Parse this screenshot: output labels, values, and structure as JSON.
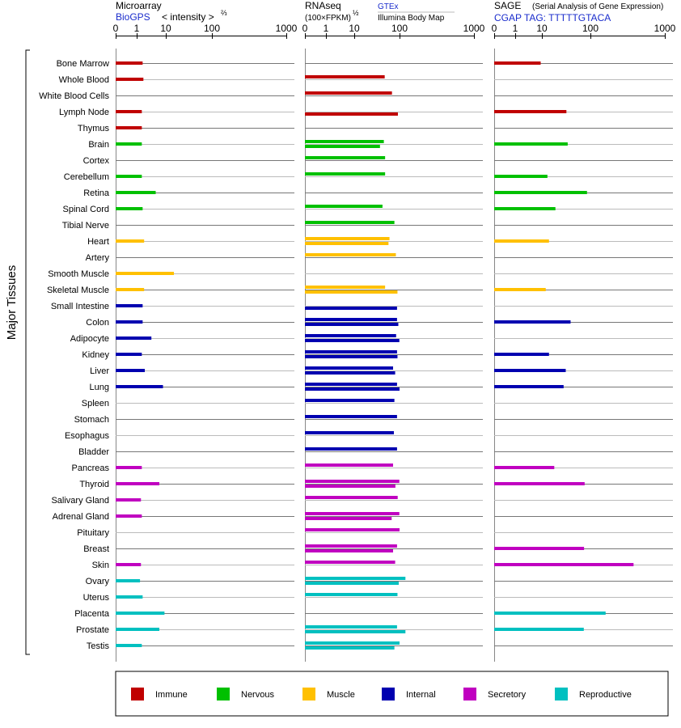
{
  "headers": {
    "microarray": {
      "title": "Microarray",
      "source": "BioGPS",
      "measure": "< intensity >",
      "measure_exp": "⅔",
      "ticks": [
        "0",
        "1",
        "10",
        "100",
        "1000"
      ]
    },
    "rnaseq": {
      "title": "RNAseq",
      "measure": "(100×FPKM)",
      "measure_exp": "½",
      "source1": "GTEx",
      "source2": "Illumina Body Map",
      "ticks": [
        "0",
        "1",
        "10",
        "100",
        "1000"
      ]
    },
    "sage": {
      "title": "SAGE",
      "subtitle": "(Serial Analysis of Gene Expression)",
      "tag": "CGAP TAG: TTTTTGTACA",
      "ticks": [
        "0",
        "1",
        "10",
        "100",
        "1000"
      ]
    }
  },
  "y_group_label": "Major Tissues",
  "legend": [
    {
      "label": "Immune",
      "color": "#c00000"
    },
    {
      "label": "Nervous",
      "color": "#00c000"
    },
    {
      "label": "Muscle",
      "color": "#ffc000"
    },
    {
      "label": "Internal",
      "color": "#0000b0"
    },
    {
      "label": "Secretory",
      "color": "#c000c0"
    },
    {
      "label": "Reproductive",
      "color": "#00c0c0"
    }
  ],
  "chart_data": {
    "type": "bar",
    "orientation": "horizontal",
    "scale": "log-like (0, 1, 10, 100, 1000)",
    "xlim": [
      0,
      1000
    ],
    "categories": [
      "Bone Marrow",
      "Whole Blood",
      "White Blood Cells",
      "Lymph Node",
      "Thymus",
      "Brain",
      "Cortex",
      "Cerebellum",
      "Retina",
      "Spinal Cord",
      "Tibial Nerve",
      "Heart",
      "Artery",
      "Smooth Muscle",
      "Skeletal Muscle",
      "Small Intestine",
      "Colon",
      "Adipocyte",
      "Kidney",
      "Liver",
      "Lung",
      "Spleen",
      "Stomach",
      "Esophagus",
      "Bladder",
      "Pancreas",
      "Thyroid",
      "Salivary Gland",
      "Adrenal Gland",
      "Pituitary",
      "Breast",
      "Skin",
      "Ovary",
      "Uterus",
      "Placenta",
      "Prostate",
      "Testis"
    ],
    "groups": [
      "Immune",
      "Immune",
      "Immune",
      "Immune",
      "Immune",
      "Nervous",
      "Nervous",
      "Nervous",
      "Nervous",
      "Nervous",
      "Nervous",
      "Muscle",
      "Muscle",
      "Muscle",
      "Muscle",
      "Internal",
      "Internal",
      "Internal",
      "Internal",
      "Internal",
      "Internal",
      "Internal",
      "Internal",
      "Internal",
      "Internal",
      "Secretory",
      "Secretory",
      "Secretory",
      "Secretory",
      "Secretory",
      "Secretory",
      "Secretory",
      "Reproductive",
      "Reproductive",
      "Reproductive",
      "Reproductive",
      "Reproductive"
    ],
    "microarray": [
      1.6,
      1.7,
      null,
      1.5,
      1.5,
      1.5,
      null,
      1.5,
      4.5,
      1.6,
      null,
      1.8,
      null,
      15,
      1.8,
      1.6,
      1.6,
      3.2,
      1.5,
      1.9,
      8,
      null,
      null,
      null,
      null,
      1.5,
      6,
      1.4,
      1.5,
      null,
      null,
      1.4,
      1.3,
      1.6,
      9,
      6,
      1.5
    ],
    "rnaseq_gtex": [
      null,
      47,
      68,
      null,
      null,
      45,
      48,
      48,
      null,
      42,
      77,
      60,
      83,
      null,
      48,
      null,
      88,
      84,
      88,
      72,
      88,
      77,
      88,
      75,
      88,
      72,
      99,
      91,
      99,
      100,
      88,
      80,
      120,
      90,
      null,
      88,
      100
    ],
    "rnaseq_ibm": [
      null,
      null,
      null,
      92,
      null,
      37,
      null,
      null,
      null,
      null,
      null,
      57,
      null,
      null,
      90,
      88,
      94,
      99,
      90,
      80,
      100,
      null,
      null,
      null,
      null,
      null,
      81,
      null,
      67,
      null,
      72,
      null,
      96,
      null,
      null,
      120,
      77
    ],
    "sage": [
      9,
      null,
      null,
      32,
      null,
      34,
      null,
      13,
      85,
      19,
      null,
      14,
      null,
      null,
      12,
      null,
      39,
      null,
      14,
      31,
      28,
      null,
      null,
      null,
      null,
      18,
      76,
      null,
      null,
      null,
      74,
      380,
      null,
      null,
      160,
      73,
      null
    ]
  }
}
